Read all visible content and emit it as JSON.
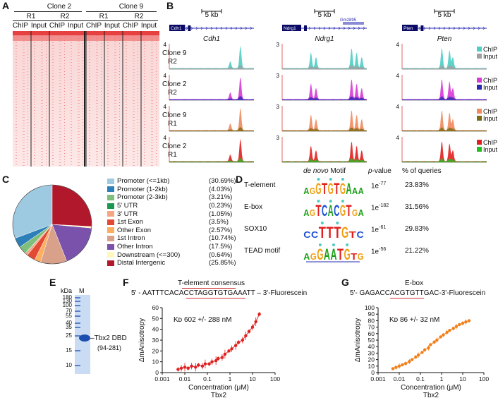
{
  "panels": {
    "a": "A",
    "b": "B",
    "c": "C",
    "d": "D",
    "e": "E",
    "f": "F",
    "g": "G"
  },
  "panel_a": {
    "clones": [
      "Clone 2",
      "Clone 9"
    ],
    "reps": [
      "R1",
      "R2",
      "R1",
      "R2"
    ],
    "tracks": [
      "ChIP",
      "Input",
      "ChIP",
      "Input",
      "ChIP",
      "Input",
      "ChIP",
      "Input"
    ]
  },
  "panel_b": {
    "scale": "5 kb",
    "genes": [
      {
        "box": "Cdh1",
        "name": "Cdh1"
      },
      {
        "box": "Ndrg1",
        "name": "Ndrg1",
        "extra": "Gm2895"
      },
      {
        "box": "Pten",
        "name": "Pten"
      }
    ],
    "rows": [
      {
        "line1": "Clone 9",
        "line2": "R2",
        "ymax": "4",
        "ymax_mid": "3",
        "legend": [
          "ChIP",
          "Input"
        ],
        "chip": "#4ecdc4",
        "input": "#a0a0a0"
      },
      {
        "line1": "Clone 2",
        "line2": "R2",
        "ymax": "4",
        "ymax_mid": "3",
        "legend": [
          "ChIP",
          "Input"
        ],
        "chip": "#d63ad6",
        "input": "#2a2ab0"
      },
      {
        "line1": "Clone 9",
        "line2": "R1",
        "ymax": "4",
        "ymax_mid": "3",
        "legend": [
          "ChIP",
          "Input"
        ],
        "chip": "#f08a5d",
        "input": "#7a6a10"
      },
      {
        "line1": "Clone 2",
        "line2": "R1",
        "ymax": "4",
        "ymax_mid": "3",
        "legend": [
          "ChIP",
          "Input"
        ],
        "chip": "#e02020",
        "input": "#22c022"
      }
    ]
  },
  "chart_data": [
    {
      "type": "pie",
      "categories": [
        "Promoter (<=1kb)",
        "Promoter (1-2kb)",
        "Promoter (2-3kb)",
        "5' UTR",
        "3' UTR",
        "1st Exon",
        "Other Exon",
        "1st Intron",
        "Other Intron",
        "Downstream (<=300)",
        "Distal Intergenic"
      ],
      "percent_labels": [
        "(30.69%)",
        "(4.03%)",
        "(3.21%)",
        "(0.23%)",
        "(1.05%)",
        "(3.5%)",
        "(2.57%)",
        "(10.74%)",
        "(17.5%)",
        "(0.64%)",
        "(25.85%)"
      ],
      "values": [
        30.69,
        4.03,
        3.21,
        0.23,
        1.05,
        3.5,
        2.57,
        10.74,
        17.5,
        0.64,
        25.85
      ],
      "colors": [
        "#9ecae1",
        "#2c7fb8",
        "#7fbf7b",
        "#1a9850",
        "#f4a582",
        "#e34a33",
        "#fdae61",
        "#d9a08a",
        "#7b52ab",
        "#fff7bc",
        "#b2182b"
      ]
    },
    {
      "type": "scatter",
      "panel": "F",
      "xlabel": "Concentration (μM)",
      "xlabel2": "Tbx2",
      "ylabel": "ΔmAnisotropy",
      "xscale": "log",
      "xlim": [
        0.001,
        100
      ],
      "ylim": [
        0,
        60
      ],
      "xticks": [
        "0.001",
        "0.01",
        "0.1",
        "1",
        "10",
        "100"
      ],
      "yticks": [
        "0",
        "10",
        "20",
        "30",
        "40",
        "50",
        "60"
      ],
      "annotation": "Kᴅ 602 +/- 288 nM",
      "color": "#e02020",
      "x": [
        0.005,
        0.007,
        0.01,
        0.014,
        0.02,
        0.03,
        0.04,
        0.06,
        0.08,
        0.12,
        0.16,
        0.24,
        0.3,
        0.45,
        0.6,
        0.9,
        1.2,
        1.8,
        2.4,
        3.6,
        5,
        7,
        10,
        14,
        20
      ],
      "y": [
        3,
        4,
        5,
        4,
        6,
        5,
        7,
        6,
        8,
        8,
        10,
        11,
        13,
        14,
        17,
        20,
        22,
        25,
        28,
        30,
        34,
        38,
        42,
        47,
        54
      ]
    },
    {
      "type": "scatter",
      "panel": "G",
      "xlabel": "Concentration (μM)",
      "xlabel2": "Tbx2",
      "ylabel": "ΔmAnisotropy",
      "xscale": "log",
      "xlim": [
        0.001,
        100
      ],
      "ylim": [
        0,
        100
      ],
      "xticks": [
        "0.001",
        "0.01",
        "0.1",
        "1",
        "10",
        "100"
      ],
      "yticks": [
        "0",
        "10",
        "20",
        "30",
        "40",
        "50",
        "60",
        "70",
        "80",
        "90",
        "100"
      ],
      "annotation": "Kᴅ 86 +/- 32 nM",
      "color": "#f07f1a",
      "x": [
        0.005,
        0.007,
        0.01,
        0.014,
        0.02,
        0.03,
        0.04,
        0.06,
        0.08,
        0.12,
        0.16,
        0.24,
        0.3,
        0.45,
        0.6,
        0.9,
        1.2,
        1.8,
        2.4,
        3.6,
        5,
        7,
        10,
        14,
        20
      ],
      "y": [
        6,
        8,
        10,
        12,
        14,
        17,
        20,
        24,
        27,
        31,
        35,
        38,
        43,
        47,
        50,
        55,
        58,
        62,
        65,
        68,
        71,
        74,
        76,
        78,
        80
      ]
    }
  ],
  "panel_d": {
    "head_motif": "de novo",
    "head_motif2": "Motif",
    "head_p": "p",
    "head_p2": "-value",
    "head_pct": "% of queries",
    "rows": [
      {
        "name": "T-element",
        "seq": "AGGTGTGAAA",
        "p": "1e",
        "exp": "-77",
        "pct": "23.83%"
      },
      {
        "name": "E-box",
        "seq": "AGTCACGTGA",
        "p": "1e",
        "exp": "-182",
        "pct": "31.56%"
      },
      {
        "name": "SOX10",
        "seq": "CCTTTGTC",
        "p": "1e",
        "exp": "-61",
        "pct": "29.83%"
      },
      {
        "name": "TEAD motif",
        "seq": "AGGAATGTG",
        "p": "1e",
        "exp": "-56",
        "pct": "21.22%"
      }
    ]
  },
  "panel_e": {
    "kda": "kDa",
    "lane": "M",
    "markers": [
      "180",
      "130",
      "100",
      "70",
      "55",
      "40",
      "35",
      "25",
      "15",
      "10"
    ],
    "band": "Tbx2 DBD",
    "band2": "(94-281)"
  },
  "panel_f": {
    "title": "T-element consensus",
    "seq": "5' - AATTTCACACCTAGGTGTGAAATT – 3'-Fluorescein"
  },
  "panel_g": {
    "title": "E-box",
    "seq": "5'- GAGACCACGTGTTGAC-3'-Fluorescein"
  }
}
